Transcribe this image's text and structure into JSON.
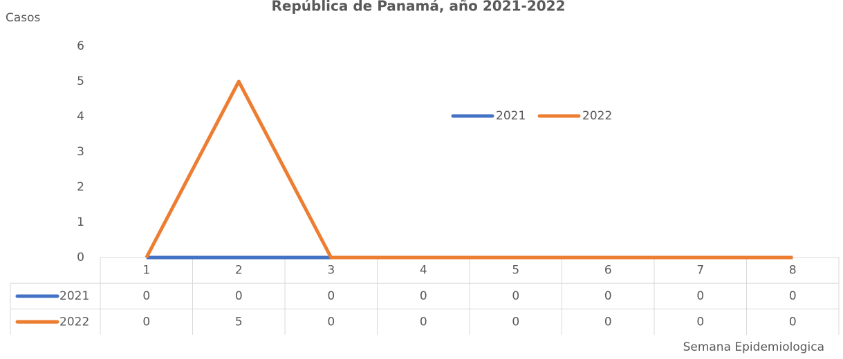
{
  "chart_data": {
    "type": "line",
    "title": "República de Panamá, año 2021-2022",
    "y_label": "Casos",
    "x_label": "Semana Epidemiologica",
    "categories": [
      "1",
      "2",
      "3",
      "4",
      "5",
      "6",
      "7",
      "8"
    ],
    "series": [
      {
        "name": "2021",
        "color": "#4472c4",
        "values": [
          0,
          0,
          0,
          0,
          0,
          0,
          0,
          0
        ]
      },
      {
        "name": "2022",
        "color": "#ed7d31",
        "values": [
          0,
          5,
          0,
          0,
          0,
          0,
          0,
          0
        ]
      }
    ],
    "ylim": [
      0,
      6
    ],
    "yticks": [
      0,
      1,
      2,
      3,
      4,
      5,
      6
    ],
    "grid": false,
    "legend": "center",
    "data_table": true
  }
}
